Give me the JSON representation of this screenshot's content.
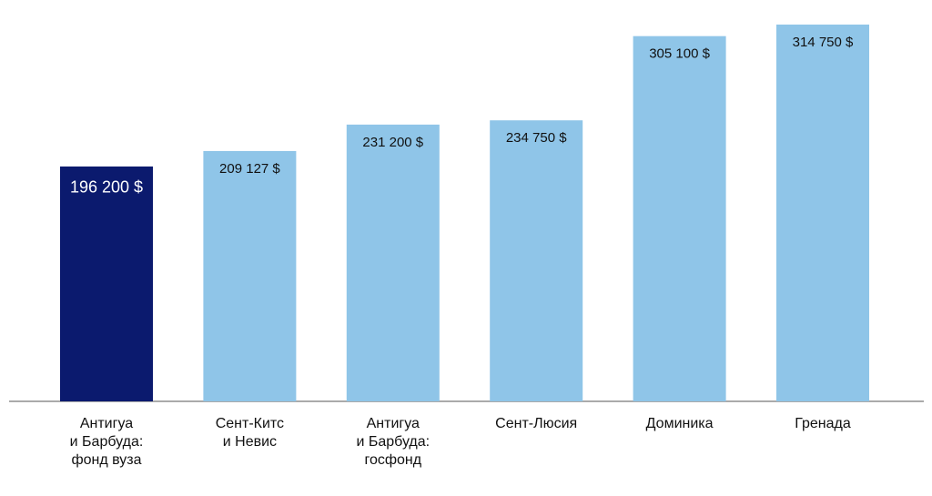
{
  "chart_data": {
    "type": "bar",
    "categories": [
      "Антигуа\nи Барбуда:\nфонд вуза",
      "Сент-Китс\nи Невис",
      "Антигуа\nи Барбуда:\nгосфонд",
      "Сент-Люсия",
      "Доминика",
      "Гренада"
    ],
    "values": [
      196200,
      209127,
      231200,
      234750,
      305100,
      314750
    ],
    "value_labels": [
      "196 200 $",
      "209 127 $",
      "231 200 $",
      "234 750 $",
      "305 100 $",
      "314 750 $"
    ],
    "colors": [
      "#0b1a6e",
      "#8fc5e8",
      "#8fc5e8",
      "#8fc5e8",
      "#8fc5e8",
      "#8fc5e8"
    ]
  }
}
